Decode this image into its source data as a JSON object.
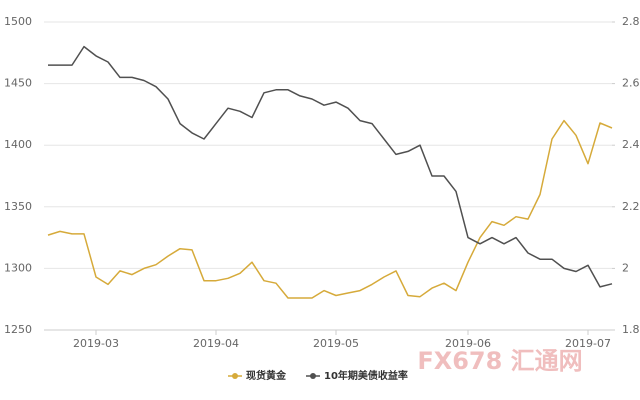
{
  "chart_data": {
    "type": "line",
    "categories": [
      null,
      null,
      null,
      null,
      "2019-03",
      null,
      null,
      null,
      null,
      null,
      null,
      null,
      null,
      null,
      "2019-04",
      null,
      null,
      null,
      null,
      null,
      null,
      null,
      null,
      null,
      "2019-05",
      null,
      null,
      null,
      null,
      null,
      null,
      null,
      null,
      null,
      null,
      "2019-06",
      null,
      null,
      null,
      null,
      null,
      null,
      null,
      null,
      null,
      "2019-07",
      null,
      null
    ],
    "series": [
      {
        "name": "现货黄金",
        "color": "#d6aa3a",
        "axis": "y",
        "values": [
          1327,
          1330,
          1328,
          1328,
          1293,
          1287,
          1298,
          1295,
          1300,
          1303,
          1310,
          1316,
          1315,
          1290,
          1290,
          1292,
          1296,
          1305,
          1290,
          1288,
          1276,
          1276,
          1276,
          1282,
          1278,
          1280,
          1282,
          1287,
          1293,
          1298,
          1278,
          1277,
          1284,
          1288,
          1282,
          1305,
          1325,
          1338,
          1335,
          1342,
          1340,
          1360,
          1405,
          1420,
          1408,
          1385,
          1418,
          1414
        ]
      },
      {
        "name": "10年期美债收益率",
        "color": "#505050",
        "axis": "y2",
        "values": [
          2.66,
          2.66,
          2.66,
          2.72,
          2.69,
          2.67,
          2.62,
          2.62,
          2.61,
          2.59,
          2.55,
          2.47,
          2.44,
          2.42,
          2.47,
          2.52,
          2.51,
          2.49,
          2.57,
          2.58,
          2.58,
          2.56,
          2.55,
          2.53,
          2.54,
          2.52,
          2.48,
          2.47,
          2.42,
          2.37,
          2.38,
          2.4,
          2.3,
          2.3,
          2.25,
          2.1,
          2.08,
          2.1,
          2.08,
          2.1,
          2.05,
          2.03,
          2.03,
          2.0,
          1.99,
          2.01,
          1.94,
          1.95
        ]
      }
    ],
    "ylim": [
      1250,
      1500
    ],
    "yticks": [
      1250,
      1300,
      1350,
      1400,
      1450,
      1500
    ],
    "y2lim": [
      1.8,
      2.8
    ],
    "y2ticks": [
      1.8,
      2,
      2.2,
      2.4,
      2.6,
      2.8
    ],
    "grid": true,
    "legend": "bottom",
    "watermark": "FX678 汇通网"
  }
}
